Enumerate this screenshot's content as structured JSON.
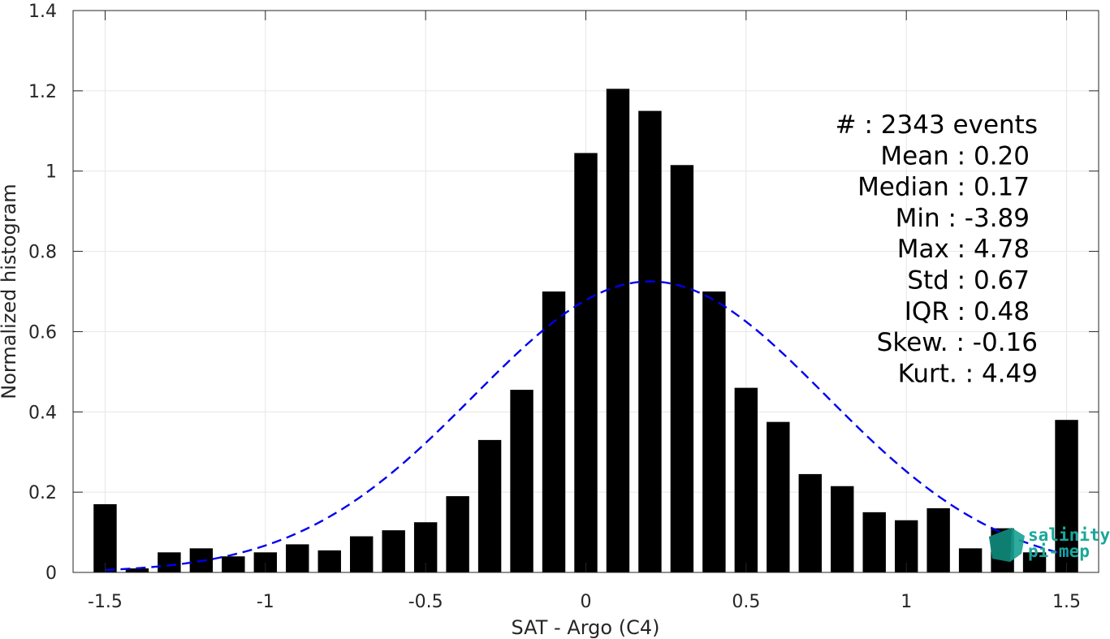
{
  "chart_data": {
    "type": "bar",
    "xlabel": "SAT - Argo (C4)",
    "ylabel": "Normalized histogram",
    "xlim": [
      -1.6,
      1.6
    ],
    "ylim": [
      0,
      1.4
    ],
    "xticks": [
      -1.5,
      -1,
      -0.5,
      0,
      0.5,
      1,
      1.5
    ],
    "xtick_labels": [
      "-1.5",
      "-1",
      "-0.5",
      "0",
      "0.5",
      "1",
      "1.5"
    ],
    "yticks": [
      0,
      0.2,
      0.4,
      0.6,
      0.8,
      1,
      1.2,
      1.4
    ],
    "ytick_labels": [
      "0",
      "0.2",
      "0.4",
      "0.6",
      "0.8",
      "1",
      "1.2",
      "1.4"
    ],
    "grid": true,
    "bin_width": 0.1,
    "bar_color": "#000000",
    "series": [
      {
        "x": [
          -1.5,
          -1.4,
          -1.3,
          -1.2,
          -1.1,
          -1.0,
          -0.9,
          -0.8,
          -0.7,
          -0.6,
          -0.5,
          -0.4,
          -0.3,
          -0.2,
          -0.1,
          0.0,
          0.1,
          0.2,
          0.3,
          0.4,
          0.5,
          0.6,
          0.7,
          0.8,
          0.9,
          1.0,
          1.1,
          1.2,
          1.3,
          1.4,
          1.5
        ],
        "values": [
          0.17,
          0.01,
          0.05,
          0.06,
          0.04,
          0.05,
          0.07,
          0.055,
          0.09,
          0.105,
          0.125,
          0.19,
          0.33,
          0.455,
          0.7,
          1.045,
          1.205,
          1.15,
          1.015,
          0.7,
          0.46,
          0.375,
          0.245,
          0.215,
          0.15,
          0.13,
          0.16,
          0.06,
          0.11,
          0.05,
          0.38
        ]
      }
    ],
    "fit_curve": {
      "style": "dashed",
      "color": "#0000ee",
      "mean": 0.2,
      "std": 0.55,
      "peak": 0.725,
      "x_range": [
        -1.5,
        1.5
      ]
    },
    "stats": [
      {
        "label": "#  : 2343 events"
      },
      {
        "label": "Mean : 0.20"
      },
      {
        "label": "Median : 0.17"
      },
      {
        "label": "Min : -3.89"
      },
      {
        "label": "Max : 4.78"
      },
      {
        "label": "Std : 0.67"
      },
      {
        "label": "IQR : 0.48"
      },
      {
        "label": "Skew. : -0.16"
      },
      {
        "label": "Kurt. : 4.49"
      }
    ]
  },
  "logo": {
    "line1": "salinity",
    "line2": "pi-mep",
    "color": "#1aa79a"
  }
}
